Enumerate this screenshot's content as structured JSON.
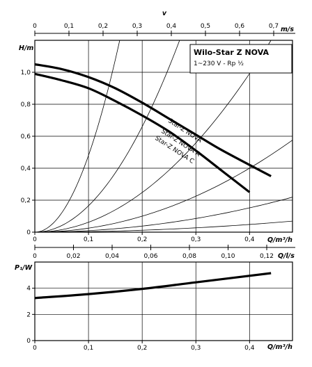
{
  "chart_data": [
    {
      "type": "line",
      "title": "Wilo-Star Z NOVA",
      "subtitle": "1~230 V - Rp ½",
      "ylabel": "H/m",
      "xlabel": "Q/m³/h",
      "xlim": [
        0,
        0.48
      ],
      "ylim": [
        0,
        1.2
      ],
      "x_ticks": [
        "0",
        "0,1",
        "0,2",
        "0,3",
        "0,4"
      ],
      "y_ticks": [
        "0",
        "0,2",
        "0,4",
        "0,6",
        "0,8",
        "1,0"
      ],
      "top_axis": {
        "symbol": "v",
        "unit": "m/s",
        "ticks": [
          "0",
          "0,1",
          "0,2",
          "0,3",
          "0,4",
          "0,5",
          "0,6",
          "0,7"
        ]
      },
      "bottom_axis2": {
        "label": "Q/l/s",
        "ticks": [
          "0",
          "0,02",
          "0,04",
          "0,06",
          "0,08",
          "0,10",
          "0,12"
        ]
      },
      "series": [
        {
          "name": "Star-Z NOVA",
          "x": [
            0,
            0.05,
            0.1,
            0.15,
            0.2,
            0.25,
            0.3,
            0.35,
            0.44
          ],
          "y": [
            1.05,
            1.02,
            0.97,
            0.9,
            0.81,
            0.71,
            0.61,
            0.51,
            0.35
          ]
        },
        {
          "name": "Star-Z NOVA A",
          "x": [
            0,
            0.05,
            0.1,
            0.15,
            0.2,
            0.25,
            0.3,
            0.35,
            0.4
          ],
          "y": [
            0.99,
            0.95,
            0.9,
            0.82,
            0.73,
            0.63,
            0.51,
            0.38,
            0.25
          ]
        },
        {
          "name": "Star-Z NOVA C",
          "x": [
            0,
            0.05,
            0.1,
            0.15,
            0.2,
            0.25,
            0.3,
            0.35,
            0.4
          ],
          "y": [
            0.99,
            0.95,
            0.9,
            0.82,
            0.73,
            0.63,
            0.51,
            0.38,
            0.25
          ]
        }
      ],
      "system_curves_k": [
        48,
        16.5,
        6.2,
        2.5,
        0.95,
        0.3
      ]
    },
    {
      "type": "line",
      "ylabel": "P₁/W",
      "xlabel": "Q/m³/h",
      "xlim": [
        0,
        0.48
      ],
      "ylim": [
        0,
        6
      ],
      "x_ticks": [
        "0",
        "0,1",
        "0,2",
        "0,3",
        "0,4"
      ],
      "y_ticks": [
        "0",
        "2",
        "4"
      ],
      "series": [
        {
          "name": "",
          "x": [
            0,
            0.1,
            0.2,
            0.3,
            0.44
          ],
          "y": [
            3.25,
            3.55,
            3.95,
            4.45,
            5.15
          ]
        }
      ]
    }
  ]
}
